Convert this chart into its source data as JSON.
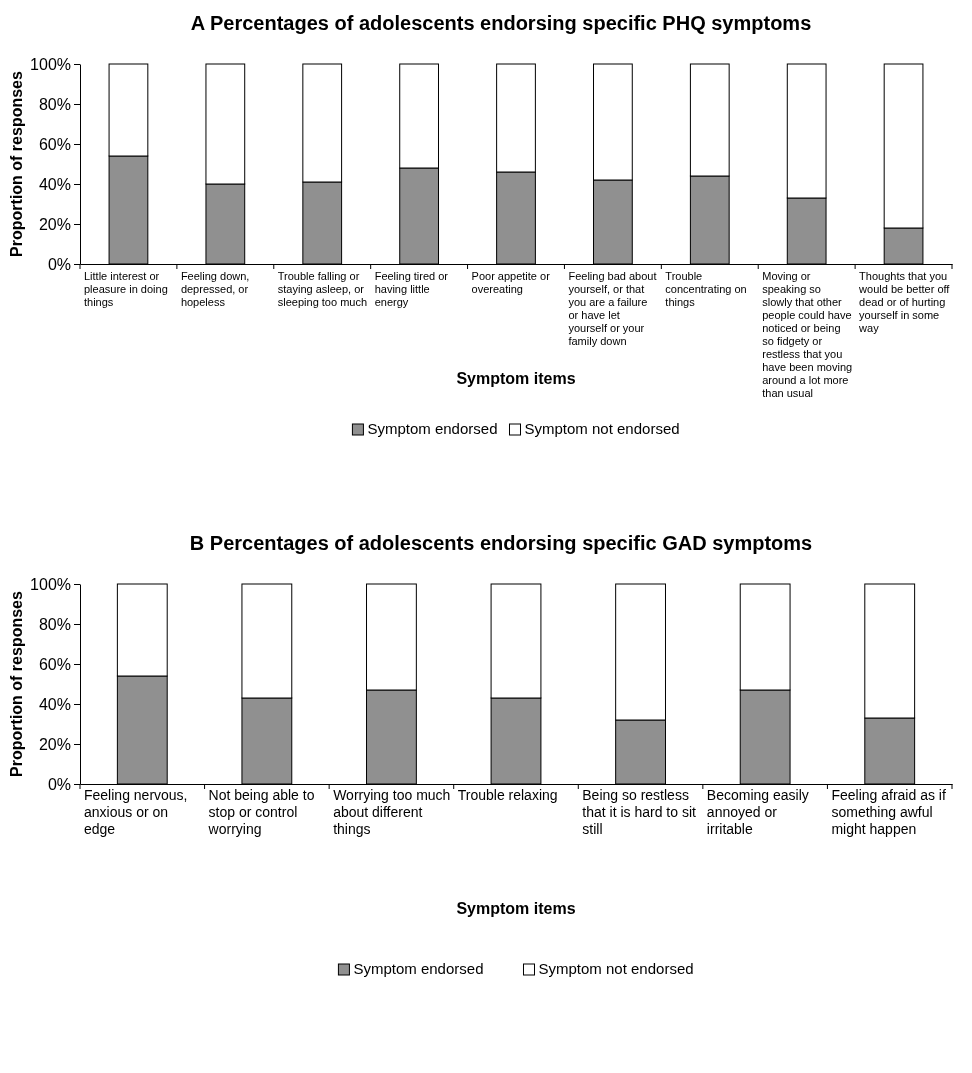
{
  "chart_data": [
    {
      "type": "bar",
      "stacked": true,
      "title": "A  Percentages of adolescents endorsing specific PHQ symptoms",
      "xlabel": "Symptom items",
      "ylabel": "Proportion of responses",
      "legend": "bottom",
      "grid": false,
      "categories": [
        "Little interest or pleasure in doing things",
        "Feeling down, depressed, or hopeless",
        "Trouble falling or staying asleep, or sleeping too much",
        "Feeling tired or having little energy",
        "Poor appetite or overeating",
        "Feeling bad about yourself, or that you are a failure or have let yourself or your family down",
        "Trouble concentrating on things",
        "Moving or speaking so slowly that other people could have noticed or being so fidgety or restless that you have been moving around a lot more than usual",
        "Thoughts that you would be better off dead or of hurting yourself in some way"
      ],
      "ylim": [
        0,
        100
      ],
      "yticks": [
        {
          "value": 0,
          "label": "0%"
        },
        {
          "value": 20,
          "label": "20%"
        },
        {
          "value": 40,
          "label": "40%"
        },
        {
          "value": 60,
          "label": "60%"
        },
        {
          "value": 80,
          "label": "80%"
        },
        {
          "value": 100,
          "label": "100%"
        }
      ],
      "series": [
        {
          "name": "Symptom endorsed",
          "color": "#909090",
          "values": [
            54,
            40,
            41,
            48,
            46,
            42,
            44,
            33,
            18
          ]
        },
        {
          "name": "Symptom not endorsed",
          "color": "#ffffff",
          "values": [
            46,
            60,
            59,
            52,
            54,
            58,
            56,
            67,
            82
          ]
        }
      ]
    },
    {
      "type": "bar",
      "stacked": true,
      "title": "B  Percentages of adolescents endorsing specific GAD symptoms",
      "xlabel": "Symptom items",
      "ylabel": "Proportion of responses",
      "legend": "bottom",
      "grid": false,
      "categories": [
        "Feeling nervous, anxious or on edge",
        "Not being able to stop or control worrying",
        "Worrying too much about different things",
        "Trouble relaxing",
        "Being so restless that it is hard to sit still",
        "Becoming easily annoyed or irritable",
        "Feeling afraid as if something awful might happen"
      ],
      "ylim": [
        0,
        100
      ],
      "yticks": [
        {
          "value": 0,
          "label": "0%"
        },
        {
          "value": 20,
          "label": "20%"
        },
        {
          "value": 40,
          "label": "40%"
        },
        {
          "value": 60,
          "label": "60%"
        },
        {
          "value": 80,
          "label": "80%"
        },
        {
          "value": 100,
          "label": "100%"
        }
      ],
      "series": [
        {
          "name": "Symptom endorsed",
          "color": "#909090",
          "values": [
            54,
            43,
            47,
            43,
            32,
            47,
            33
          ]
        },
        {
          "name": "Symptom not endorsed",
          "color": "#ffffff",
          "values": [
            46,
            57,
            53,
            57,
            68,
            53,
            67
          ]
        }
      ]
    }
  ]
}
